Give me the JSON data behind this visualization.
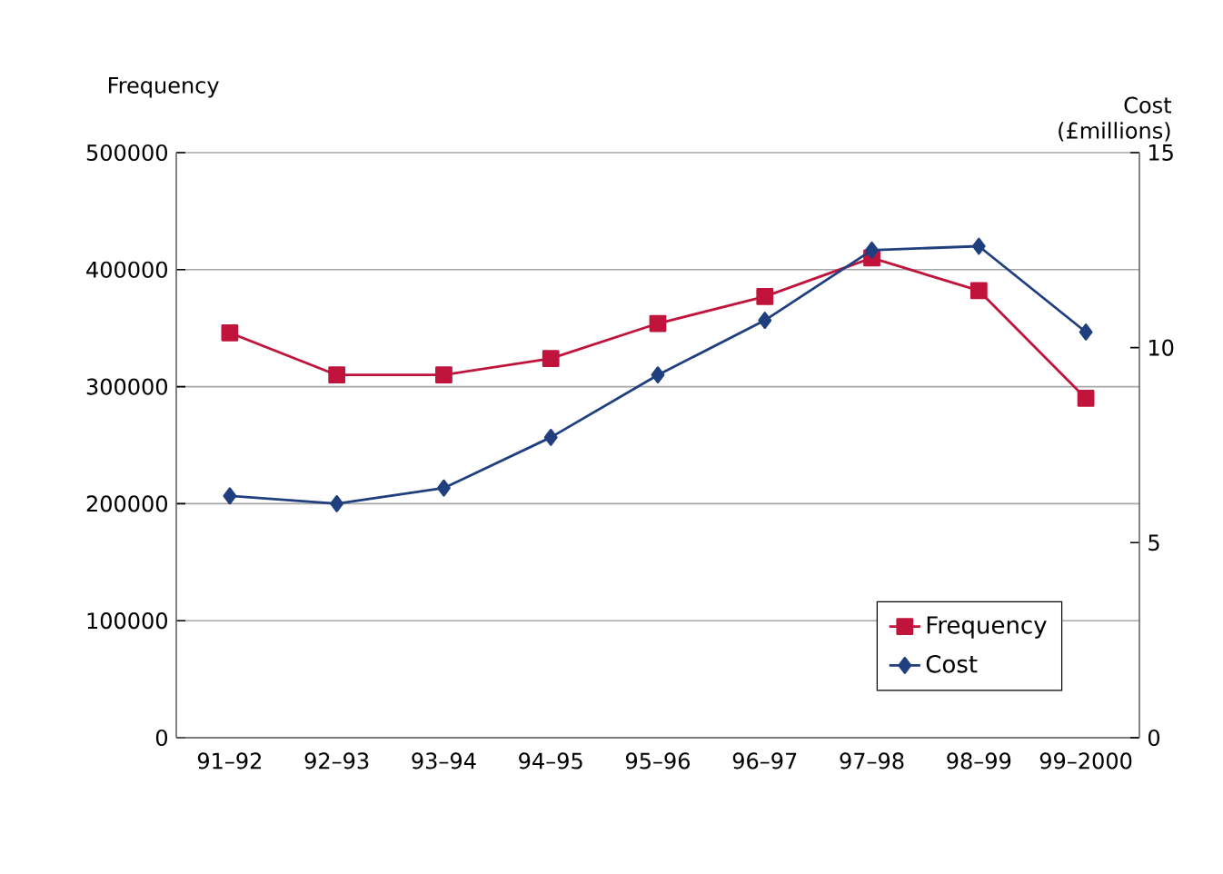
{
  "chart_data": {
    "type": "line",
    "ylabel": "Frequency",
    "y2label": "Cost (£millions)",
    "categories": [
      "91–92",
      "92–93",
      "93–94",
      "94–95",
      "95–96",
      "96–97",
      "97–98",
      "98–99",
      "99–2000"
    ],
    "series": [
      {
        "name": "Frequency",
        "color": "#c0143c",
        "marker": "square",
        "values": [
          346000,
          310000,
          310000,
          324000,
          354000,
          377000,
          410000,
          382000,
          290000
        ]
      },
      {
        "name": "Cost",
        "color": "#1f3f7f",
        "marker": "diamond",
        "axis": "y2",
        "values": [
          6.2,
          6.0,
          6.4,
          7.7,
          9.3,
          10.7,
          12.5,
          12.6,
          10.4
        ]
      }
    ],
    "ylim": [
      0,
      500000
    ],
    "yticks": [
      0,
      100000,
      200000,
      300000,
      400000,
      500000
    ],
    "y2lim": [
      0,
      15
    ],
    "y2ticks": [
      0,
      5,
      10,
      15
    ],
    "grid": "y",
    "legend": "bottom right"
  }
}
